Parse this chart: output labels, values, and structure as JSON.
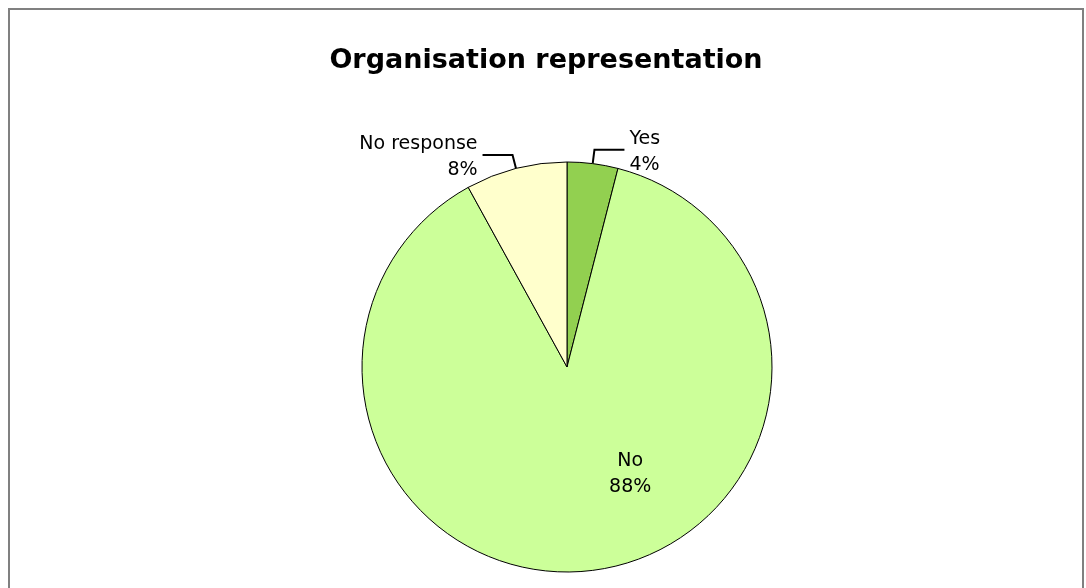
{
  "chart_data": {
    "type": "pie",
    "title": "Organisation representation",
    "categories": [
      "Yes",
      "No",
      "No response"
    ],
    "values": [
      4,
      88,
      8
    ],
    "colors": [
      "#92d050",
      "#ccff99",
      "#ffffcc"
    ],
    "value_labels": [
      "4%",
      "88%",
      "8%"
    ],
    "legend": false
  }
}
